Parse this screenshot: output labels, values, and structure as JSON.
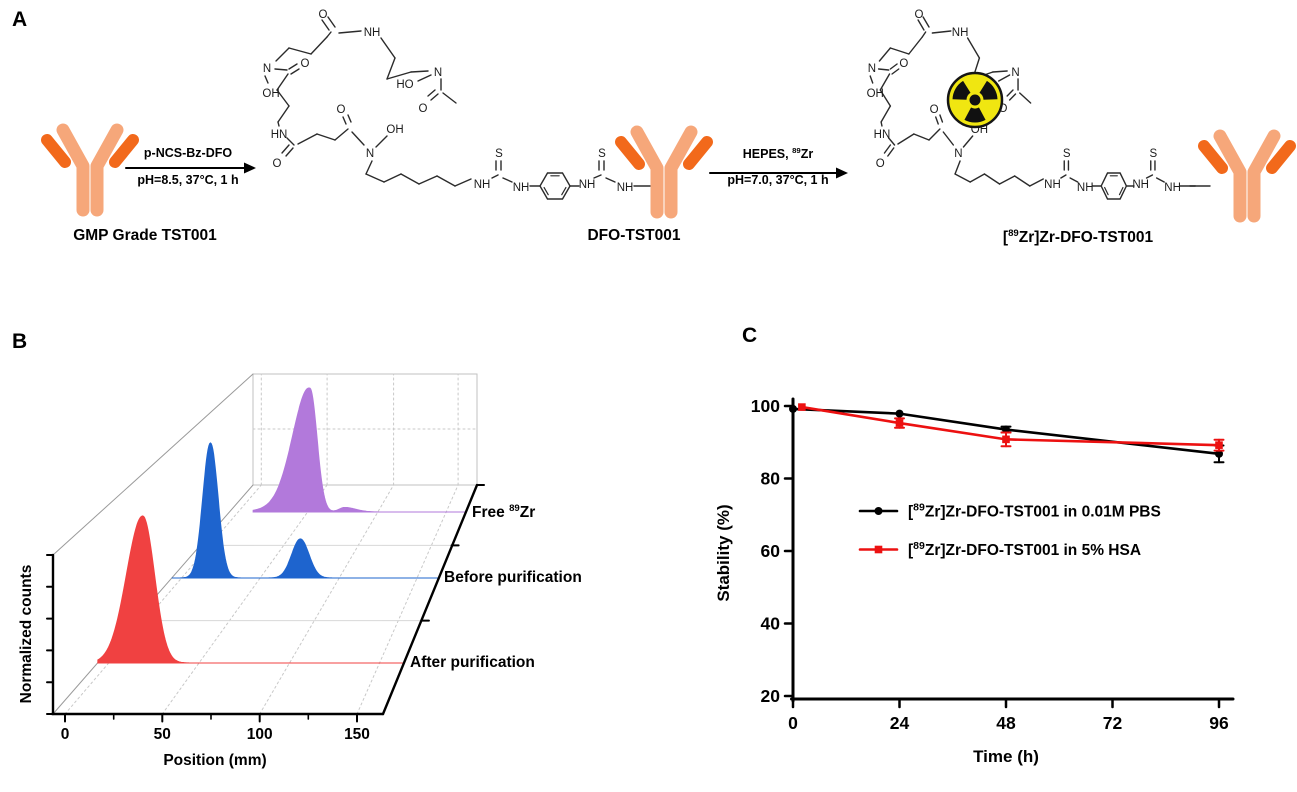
{
  "figure": {
    "panels": {
      "a": "A",
      "b": "B",
      "c": "C"
    },
    "panelA": {
      "reactant_label": "GMP Grade TST001",
      "intermediate_label": "DFO-TST001",
      "product_label": {
        "pre": "[",
        "sup": "89",
        "post": "Zr]Zr-DFO-TST001"
      },
      "arrow1": {
        "top": "p-NCS-Bz-DFO",
        "bottom": "pH=8.5, 37°C, 1 h"
      },
      "arrow2": {
        "top": {
          "pre": "HEPES, ",
          "sup": "89",
          "post": "Zr"
        },
        "bottom": "pH=7.0, 37°C, 1 h"
      },
      "molecule_atoms": [
        "O",
        "NH",
        "HO",
        "N",
        "O",
        "N",
        "OH",
        "O",
        "HN",
        "O",
        "O",
        "OH",
        "N",
        "NH",
        "S",
        "NH",
        "NH",
        "S",
        "NH"
      ],
      "colors": {
        "antibody_light": "#F6A77A",
        "antibody_dark": "#F2691B",
        "radiation_yellow": "#F0E611",
        "bond": "#2b2b2b"
      }
    }
  },
  "chart_data": [
    {
      "type": "area",
      "id": "B",
      "style": "3d-waterfall",
      "xlabel": "Position (mm)",
      "ylabel": "Normalized counts",
      "xlim": [
        0,
        160
      ],
      "xticks": [
        0,
        50,
        100,
        150
      ],
      "xticks_minor": [
        25,
        75,
        125
      ],
      "y_axis_unlabeled_ticks": 6,
      "grid": "dotted-gray",
      "series": [
        {
          "name": "After purification",
          "color": "#F04141",
          "range_mm": [
            -6,
            164
          ],
          "peaks": [
            {
              "center_mm": 19,
              "height": 0.98,
              "sigma_left_mm": 9,
              "sigma_right_mm": 6.5
            }
          ]
        },
        {
          "name": "Before purification",
          "color": "#1E64CE",
          "range_mm": [
            -6,
            164
          ],
          "peaks": [
            {
              "center_mm": 18.5,
              "height": 0.9,
              "sigma_left_mm": 4.8,
              "sigma_right_mm": 4.8
            },
            {
              "center_mm": 76,
              "height": 0.26,
              "sigma_left_mm": 5.5,
              "sigma_right_mm": 5.5
            }
          ]
        },
        {
          "name": {
            "pre": "Free ",
            "sup": "89",
            "post": "Zr"
          },
          "color": "#B279DB",
          "range_mm": [
            11,
            164
          ],
          "peaks": [
            {
              "center_mm": 52,
              "height": 0.78,
              "sigma_left_mm": 12,
              "sigma_right_mm": 5
            },
            {
              "center_mm": 46,
              "height": 0.06,
              "sigma_left_mm": 18,
              "sigma_right_mm": 8
            },
            {
              "center_mm": 77,
              "height": 0.03,
              "sigma_left_mm": 4,
              "sigma_right_mm": 8
            }
          ]
        }
      ]
    },
    {
      "type": "line",
      "id": "C",
      "xlabel": "Time (h)",
      "ylabel": "Stability (%)",
      "xticks": [
        0,
        24,
        48,
        72,
        96
      ],
      "yticks": [
        20,
        40,
        60,
        80,
        100
      ],
      "ylim": [
        20,
        103
      ],
      "xlim": [
        0,
        99
      ],
      "legend_position": "inside-middle-left",
      "series": [
        {
          "name": {
            "pre": "[",
            "sup": "89",
            "post": "Zr]Zr-DFO-TST001 in 0.01M PBS"
          },
          "color": "#000000",
          "marker": "circle",
          "x": [
            0,
            24,
            48,
            96
          ],
          "y": [
            99.2,
            97.9,
            93.5,
            86.8
          ],
          "err": [
            0,
            0,
            0.8,
            2.3
          ]
        },
        {
          "name": {
            "pre": "[",
            "sup": "89",
            "post": "Zr]Zr-DFO-TST001 in 5% HSA"
          },
          "color": "#EC1111",
          "marker": "square",
          "x": [
            2,
            24,
            48,
            96
          ],
          "y": [
            99.7,
            95.3,
            90.8,
            89.2
          ],
          "err": [
            0,
            1.3,
            1.9,
            1.5
          ]
        }
      ]
    }
  ]
}
